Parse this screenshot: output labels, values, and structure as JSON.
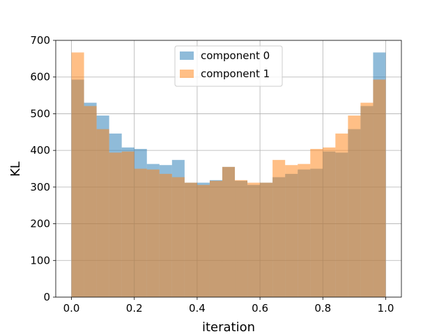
{
  "chart_data": {
    "type": "histogram",
    "xlabel": "iteration",
    "ylabel": "KL",
    "xlim": [
      -0.05,
      1.05
    ],
    "ylim": [
      0,
      700
    ],
    "x_ticks": [
      "0.0",
      "0.2",
      "0.4",
      "0.6",
      "0.8",
      "1.0"
    ],
    "x_tick_values": [
      0.0,
      0.2,
      0.4,
      0.6,
      0.8,
      1.0
    ],
    "y_ticks": [
      "0",
      "100",
      "200",
      "300",
      "400",
      "500",
      "600",
      "700"
    ],
    "y_tick_values": [
      0,
      100,
      200,
      300,
      400,
      500,
      600,
      700
    ],
    "grid": true,
    "legend_position": "top-center",
    "bin_edges": [
      0.0,
      0.04,
      0.08,
      0.12,
      0.16,
      0.2,
      0.24,
      0.28,
      0.32,
      0.36,
      0.4,
      0.44,
      0.48,
      0.52,
      0.56,
      0.6,
      0.64,
      0.68,
      0.72,
      0.76,
      0.8,
      0.84,
      0.88,
      0.92,
      0.96,
      1.0
    ],
    "series": [
      {
        "name": "component 0",
        "color": "#1f77b4",
        "values": [
          593,
          530,
          495,
          446,
          408,
          404,
          363,
          360,
          374,
          312,
          312,
          319,
          355,
          317,
          306,
          312,
          327,
          336,
          348,
          350,
          397,
          394,
          458,
          521,
          667
        ]
      },
      {
        "name": "component 1",
        "color": "#ff7f0e",
        "values": [
          667,
          521,
          458,
          394,
          397,
          350,
          348,
          336,
          327,
          312,
          306,
          317,
          355,
          319,
          312,
          312,
          374,
          360,
          363,
          404,
          408,
          446,
          495,
          530,
          593
        ]
      }
    ]
  }
}
